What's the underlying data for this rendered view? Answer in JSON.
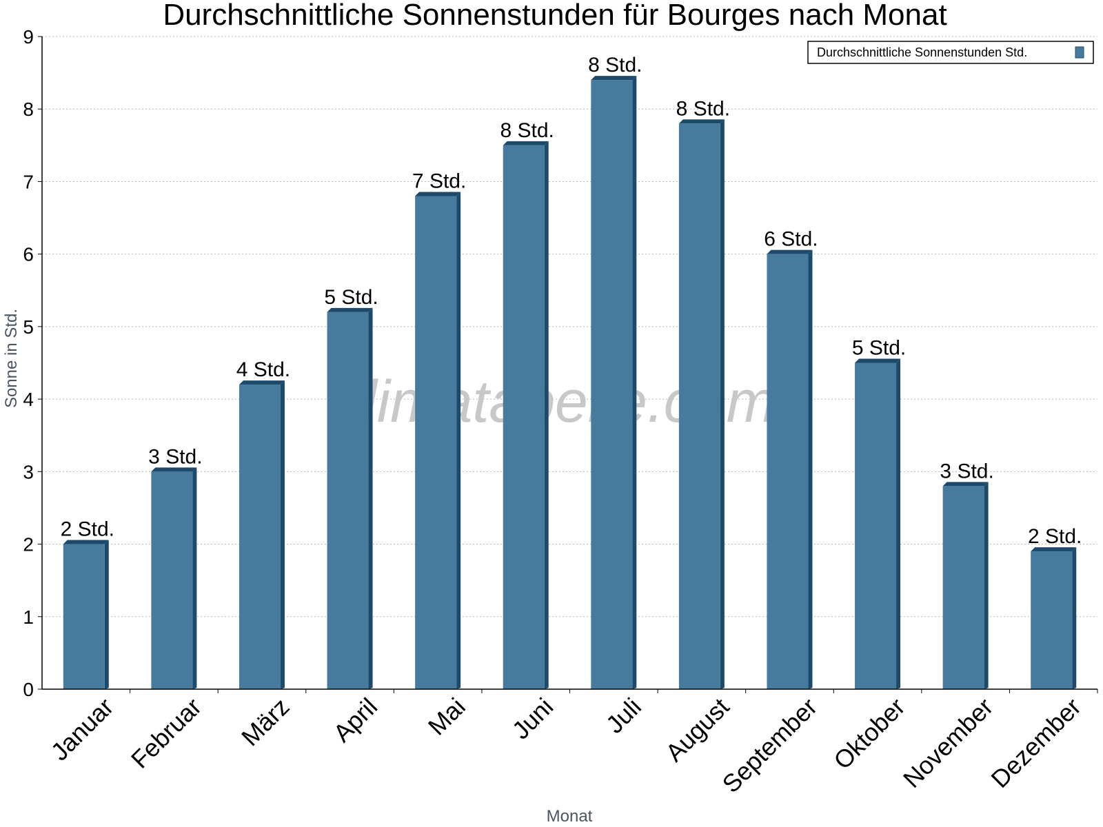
{
  "chart_data": {
    "type": "bar",
    "title": "Durchschnittliche Sonnenstunden für Bourges nach Monat",
    "xlabel": "Monat",
    "ylabel": "Sonne in Std.",
    "ylim": [
      0,
      9
    ],
    "yticks": [
      0,
      1,
      2,
      3,
      4,
      5,
      6,
      7,
      8,
      9
    ],
    "grid": true,
    "legend_position": "top-right",
    "categories": [
      "Januar",
      "Februar",
      "März",
      "April",
      "Mai",
      "Juni",
      "Juli",
      "August",
      "September",
      "Oktober",
      "November",
      "Dezember"
    ],
    "series": [
      {
        "name": "Durchschnittliche Sonnenstunden Std.",
        "color": "#467b9e",
        "values": [
          2.0,
          3.0,
          4.2,
          5.2,
          6.8,
          7.5,
          8.4,
          7.8,
          6.0,
          4.5,
          2.8,
          1.9
        ],
        "labels": [
          "2 Std.",
          "3 Std.",
          "4 Std.",
          "5 Std.",
          "7 Std.",
          "8 Std.",
          "8 Std.",
          "8 Std.",
          "6 Std.",
          "5 Std.",
          "3 Std.",
          "2 Std."
        ]
      }
    ]
  },
  "watermark": "klimatabelle.com"
}
